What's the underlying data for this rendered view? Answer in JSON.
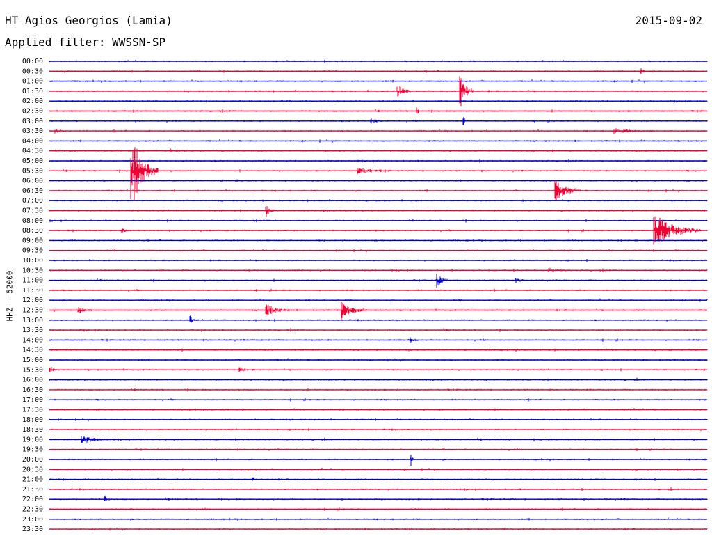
{
  "header": {
    "station": "HT Agios Georgios (Lamia)",
    "date": "2015-09-02",
    "filter": "Applied filter: WWSSN-SP"
  },
  "chart_data": {
    "type": "line",
    "title": "HT Agios Georgios (Lamia)",
    "subtitle": "Applied filter: WWSSN-SP",
    "date": "2015-09-02",
    "ylabel": "HHZ - 52000",
    "xlabel": "",
    "row_labels": [
      "00:00",
      "00:30",
      "01:00",
      "01:30",
      "02:00",
      "02:30",
      "03:00",
      "03:30",
      "04:00",
      "04:30",
      "05:00",
      "05:30",
      "06:00",
      "06:30",
      "07:00",
      "07:30",
      "08:00",
      "08:30",
      "09:00",
      "09:30",
      "10:00",
      "10:30",
      "11:00",
      "11:30",
      "12:00",
      "12:30",
      "13:00",
      "13:30",
      "14:00",
      "14:30",
      "15:00",
      "15:30",
      "16:00",
      "16:30",
      "17:00",
      "17:30",
      "18:00",
      "18:30",
      "19:00",
      "19:30",
      "20:00",
      "20:30",
      "21:00",
      "21:30",
      "22:00",
      "22:30",
      "23:00",
      "23:30"
    ],
    "colors": [
      "#0000cc",
      "#ee0033"
    ],
    "grid": false,
    "events": [
      {
        "row": 1,
        "x": 0.9,
        "amp": 6,
        "dur": 0.006
      },
      {
        "row": 3,
        "x": 0.53,
        "amp": 8,
        "dur": 0.025
      },
      {
        "row": 3,
        "x": 0.625,
        "amp": 26,
        "dur": 0.02
      },
      {
        "row": 5,
        "x": 0.56,
        "amp": 4,
        "dur": 0.004
      },
      {
        "row": 5,
        "x": 0.56,
        "amp": 3,
        "dur": 0.003
      },
      {
        "row": 6,
        "x": 0.49,
        "amp": 3,
        "dur": 0.025
      },
      {
        "row": 6,
        "x": 0.63,
        "amp": 8,
        "dur": 0.006
      },
      {
        "row": 7,
        "x": 0.01,
        "amp": 3,
        "dur": 0.02
      },
      {
        "row": 7,
        "x": 0.86,
        "amp": 3,
        "dur": 0.06
      },
      {
        "row": 9,
        "x": 0.185,
        "amp": 3,
        "dur": 0.005
      },
      {
        "row": 11,
        "x": 0.125,
        "amp": 55,
        "dur": 0.04
      },
      {
        "row": 11,
        "x": 0.47,
        "amp": 4,
        "dur": 0.05
      },
      {
        "row": 13,
        "x": 0.77,
        "amp": 14,
        "dur": 0.04
      },
      {
        "row": 15,
        "x": 0.33,
        "amp": 9,
        "dur": 0.012
      },
      {
        "row": 17,
        "x": 0.92,
        "amp": 24,
        "dur": 0.07
      },
      {
        "row": 17,
        "x": 0.11,
        "amp": 4,
        "dur": 0.01
      },
      {
        "row": 21,
        "x": 0.76,
        "amp": 3,
        "dur": 0.03
      },
      {
        "row": 22,
        "x": 0.59,
        "amp": 10,
        "dur": 0.015
      },
      {
        "row": 22,
        "x": 0.71,
        "amp": 2,
        "dur": 0.02
      },
      {
        "row": 25,
        "x": 0.045,
        "amp": 5,
        "dur": 0.02
      },
      {
        "row": 25,
        "x": 0.33,
        "amp": 8,
        "dur": 0.035
      },
      {
        "row": 25,
        "x": 0.445,
        "amp": 12,
        "dur": 0.035
      },
      {
        "row": 26,
        "x": 0.215,
        "amp": 6,
        "dur": 0.006
      },
      {
        "row": 28,
        "x": 0.55,
        "amp": 3,
        "dur": 0.01
      },
      {
        "row": 31,
        "x": 0.0,
        "amp": 4,
        "dur": 0.015
      },
      {
        "row": 31,
        "x": 0.29,
        "amp": 6,
        "dur": 0.008
      },
      {
        "row": 38,
        "x": 0.05,
        "amp": 5,
        "dur": 0.04
      },
      {
        "row": 40,
        "x": 0.55,
        "amp": 8,
        "dur": 0.004
      },
      {
        "row": 42,
        "x": 0.31,
        "amp": 4,
        "dur": 0.005
      },
      {
        "row": 44,
        "x": 0.085,
        "amp": 6,
        "dur": 0.004
      }
    ]
  }
}
